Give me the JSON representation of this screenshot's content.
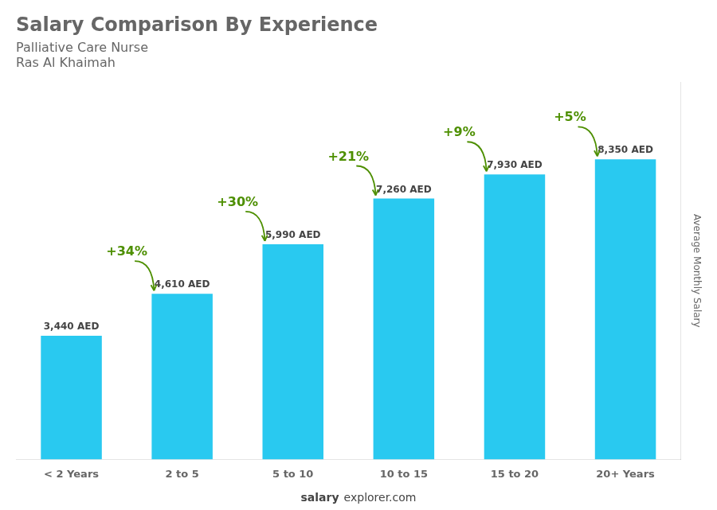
{
  "chart_data": {
    "type": "bar",
    "title": "Salary Comparison By Experience",
    "subtitle": [
      "Palliative Care Nurse",
      "Ras Al Khaimah"
    ],
    "ylabel": "Average Monthly Salary",
    "categories": [
      "< 2 Years",
      "2 to 5",
      "5 to 10",
      "10 to 15",
      "15 to 20",
      "20+ Years"
    ],
    "values": [
      3440,
      4610,
      5990,
      7260,
      7930,
      8350
    ],
    "value_labels": [
      "3,440 AED",
      "4,610 AED",
      "5,990 AED",
      "7,260 AED",
      "7,930 AED",
      "8,350 AED"
    ],
    "data_labels": true,
    "color": "#29c9f0",
    "ylim": [
      0,
      10500
    ],
    "grid": false,
    "tick_labels": "x",
    "annotations": [
      {
        "text": "+34%",
        "category": "2 to 5"
      },
      {
        "text": "+30%",
        "category": "5 to 10"
      },
      {
        "text": "+21%",
        "category": "10 to 15"
      },
      {
        "text": "+9%",
        "category": "15 to 20"
      },
      {
        "text": "+5%",
        "category": "20+ Years"
      }
    ],
    "footer": [
      "salary",
      "explorer.com"
    ]
  }
}
